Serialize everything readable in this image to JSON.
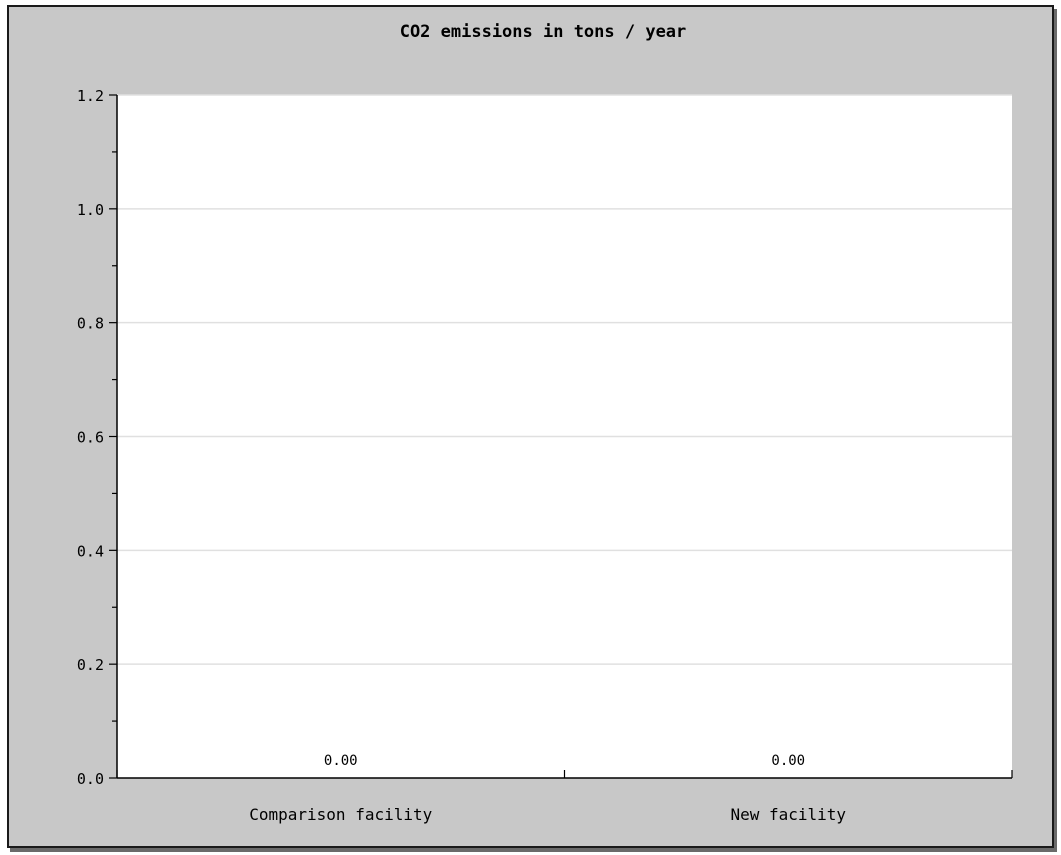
{
  "chart_data": {
    "type": "bar",
    "title": "CO2 emissions in tons / year",
    "xlabel": "",
    "ylabel": "",
    "categories": [
      "Comparison facility",
      "New facility"
    ],
    "values": [
      0.0,
      0.0
    ],
    "value_labels": [
      "0.00",
      "0.00"
    ],
    "ylim": [
      0,
      1.2
    ],
    "yticks": [
      0.0,
      0.2,
      0.4,
      0.6,
      0.8,
      1.0,
      1.2
    ],
    "ytick_labels": [
      "0.0",
      "0.2",
      "0.4",
      "0.6",
      "0.8",
      "1.0",
      "1.2"
    ],
    "grid": true,
    "legend": "none"
  },
  "colors": {
    "frame_bg": "#c8c8c8",
    "plot_bg": "#ffffff",
    "grid": "#e0e0e0",
    "axis": "#000000"
  }
}
